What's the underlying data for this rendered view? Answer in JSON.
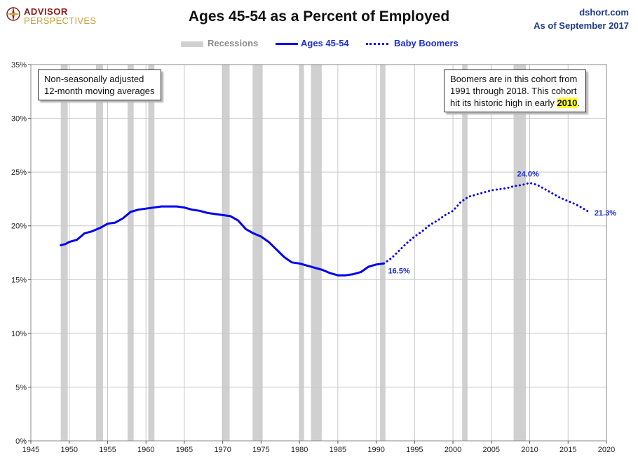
{
  "header": {
    "logo_line1": "ADVISOR",
    "logo_line2": "PERSPECTIVES",
    "title": "Ages 45-54 as a Percent of Employed",
    "source_line1": "dshort.com",
    "source_line2": "As of September 2017"
  },
  "legend": {
    "recessions": "Recessions",
    "ages": "Ages 45-54",
    "boomers": "Baby Boomers"
  },
  "notes": {
    "left_line1": "Non-seasonally adjusted",
    "left_line2": "12-month moving averages",
    "right_line1": "Boomers are in this cohort from",
    "right_line2": "1991  through 2018.  This cohort",
    "right_line3_prefix": "hit its historic high in early ",
    "right_line3_highlight": "2010",
    "right_line3_suffix": "."
  },
  "colors": {
    "line": "#0000ee",
    "recession": "#d0d0d0",
    "grid": "#c8c8c8",
    "label": "#1d2fd6"
  },
  "chart_data": {
    "type": "line",
    "x_unit": "year",
    "xlim": [
      1945,
      2020
    ],
    "ylim": [
      0,
      35
    ],
    "x_ticks": [
      1945,
      1950,
      1955,
      1960,
      1965,
      1970,
      1975,
      1980,
      1985,
      1990,
      1995,
      2000,
      2005,
      2010,
      2015,
      2020
    ],
    "y_ticks": [
      0,
      5,
      10,
      15,
      20,
      25,
      30,
      35
    ],
    "y_tick_labels": [
      "0%",
      "5%",
      "10%",
      "15%",
      "20%",
      "25%",
      "30%",
      "35%"
    ],
    "grid": true,
    "legend_position": "top-center",
    "recessions": [
      [
        1948.9,
        1949.8
      ],
      [
        1953.5,
        1954.4
      ],
      [
        1957.6,
        1958.4
      ],
      [
        1960.3,
        1961.1
      ],
      [
        1969.9,
        1970.9
      ],
      [
        1973.9,
        1975.2
      ],
      [
        1980.0,
        1980.6
      ],
      [
        1981.5,
        1982.9
      ],
      [
        1990.5,
        1991.2
      ],
      [
        2001.2,
        2001.9
      ],
      [
        2007.9,
        2009.5
      ]
    ],
    "series": [
      {
        "name": "Ages 45-54",
        "style": "solid",
        "x": [
          1948.9,
          1949.5,
          1950,
          1951,
          1952,
          1953,
          1954,
          1955,
          1956,
          1957,
          1958,
          1959,
          1960,
          1961,
          1962,
          1963,
          1964,
          1965,
          1966,
          1967,
          1968,
          1969,
          1970,
          1971,
          1972,
          1973,
          1974,
          1975,
          1976,
          1977,
          1978,
          1979,
          1980,
          1981,
          1982,
          1983,
          1984,
          1985,
          1986,
          1987,
          1988,
          1989,
          1990,
          1991
        ],
        "y": [
          18.2,
          18.3,
          18.5,
          18.7,
          19.3,
          19.5,
          19.8,
          20.2,
          20.3,
          20.7,
          21.3,
          21.5,
          21.6,
          21.7,
          21.8,
          21.8,
          21.8,
          21.7,
          21.5,
          21.4,
          21.2,
          21.1,
          21.0,
          20.9,
          20.5,
          19.7,
          19.3,
          19.0,
          18.5,
          17.8,
          17.1,
          16.6,
          16.5,
          16.3,
          16.1,
          15.9,
          15.6,
          15.4,
          15.4,
          15.5,
          15.7,
          16.2,
          16.4,
          16.5
        ]
      },
      {
        "name": "Baby Boomers",
        "style": "dotted",
        "x": [
          1991,
          1992,
          1993,
          1994,
          1995,
          1996,
          1997,
          1998,
          1999,
          2000,
          2001,
          2002,
          2003,
          2004,
          2005,
          2006,
          2007,
          2008,
          2009,
          2010,
          2011,
          2012,
          2013,
          2014,
          2015,
          2016,
          2017,
          2017.7
        ],
        "y": [
          16.5,
          17.0,
          17.7,
          18.4,
          19.0,
          19.5,
          20.1,
          20.5,
          21.0,
          21.4,
          22.2,
          22.7,
          22.9,
          23.1,
          23.3,
          23.4,
          23.5,
          23.7,
          23.8,
          24.0,
          23.8,
          23.4,
          23.0,
          22.6,
          22.3,
          22.0,
          21.6,
          21.3
        ]
      }
    ],
    "annotations": [
      {
        "text": "16.5%",
        "x": 1991,
        "y": 16.5
      },
      {
        "text": "24.0%",
        "x": 2010,
        "y": 24.0
      },
      {
        "text": "21.3%",
        "x": 2017.7,
        "y": 21.3
      }
    ]
  }
}
